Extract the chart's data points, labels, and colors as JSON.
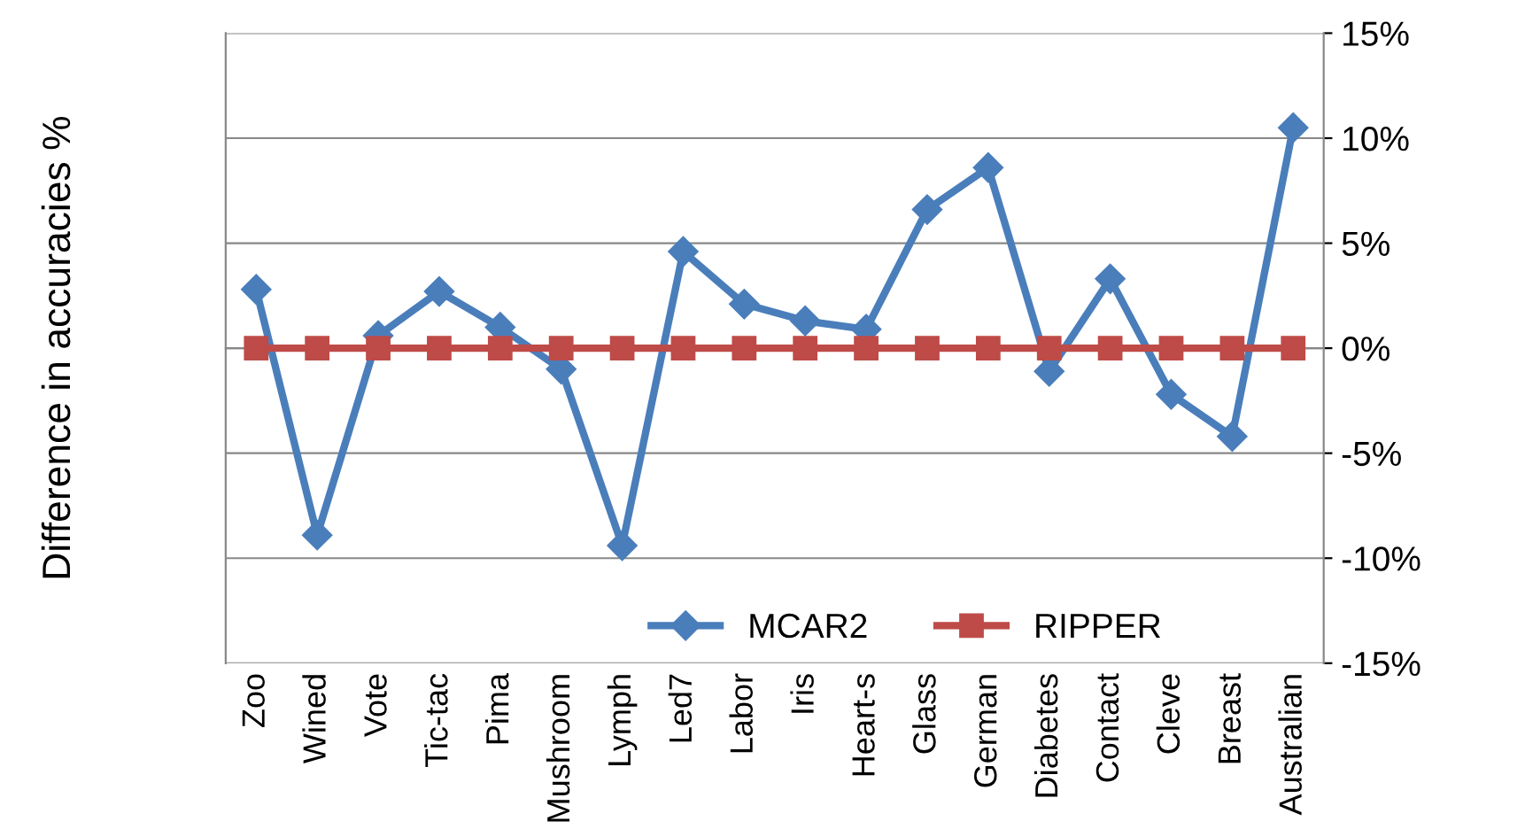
{
  "chart_data": {
    "type": "line",
    "ylabel": "Difference in accuracies %",
    "categories": [
      "Zoo",
      "Wined",
      "Vote",
      "Tic-tac",
      "Pima",
      "Mushroom",
      "Lymph",
      "Led7",
      "Labor",
      "Iris",
      "Heart-s",
      "Glass",
      "German",
      "Diabetes",
      "Contact",
      "Cleve",
      "Breast",
      "Australian"
    ],
    "series": [
      {
        "name": "MCAR2",
        "color": "#4a7ebb",
        "marker": "diamond",
        "values": [
          2.8,
          -8.9,
          0.6,
          2.7,
          1.0,
          -1.0,
          -9.4,
          4.6,
          2.1,
          1.3,
          0.9,
          6.6,
          8.6,
          -1.1,
          3.3,
          -2.2,
          -4.2,
          10.5
        ]
      },
      {
        "name": "RIPPER",
        "color": "#be4b48",
        "marker": "square",
        "values": [
          0,
          0,
          0,
          0,
          0,
          0,
          0,
          0,
          0,
          0,
          0,
          0,
          0,
          0,
          0,
          0,
          0,
          0
        ]
      }
    ],
    "ylim": [
      -15,
      15
    ],
    "yticks": [
      {
        "value": -15,
        "label": "-15%"
      },
      {
        "value": -10,
        "label": "-10%"
      },
      {
        "value": -5,
        "label": "-5%"
      },
      {
        "value": 0,
        "label": "0%"
      },
      {
        "value": 5,
        "label": "5%"
      },
      {
        "value": 10,
        "label": "10%"
      },
      {
        "value": 15,
        "label": "15%"
      }
    ],
    "grid": "y",
    "legend": "bottom",
    "line_style": "solid"
  }
}
